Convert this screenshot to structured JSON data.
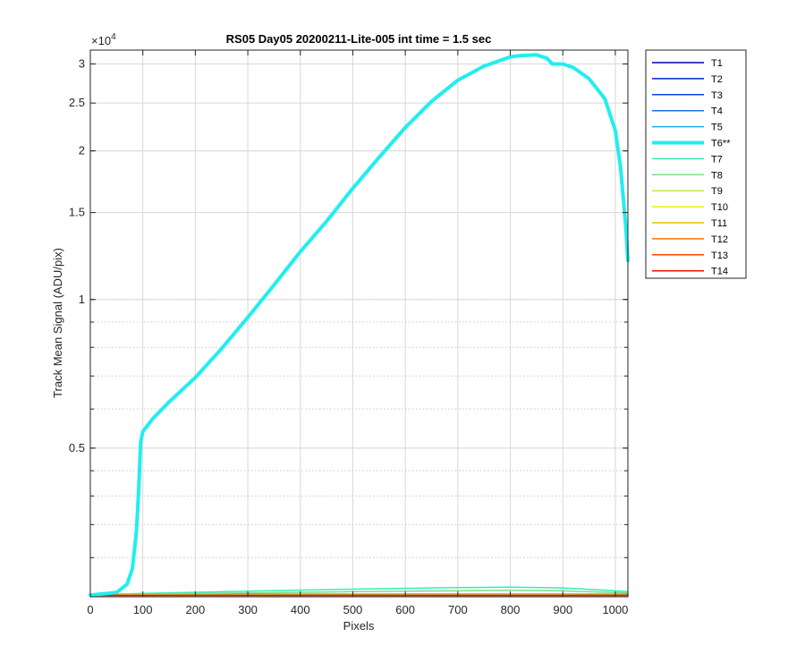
{
  "chart_data": {
    "type": "line",
    "title": "RS05 Day05 20200211-Lite-005 int time = 1.5 sec",
    "xlabel": "Pixels",
    "ylabel": "Track Mean Signal (ADU/pix)",
    "y_multiplier": "×10",
    "y_multiplier_exp": "4",
    "y_scale": "log",
    "xlim": [
      0,
      1024
    ],
    "ylim": [
      2500,
      32000
    ],
    "x_ticks": [
      0,
      100,
      200,
      300,
      400,
      500,
      600,
      700,
      800,
      900,
      1000
    ],
    "y_ticks": [
      {
        "value": 5000,
        "label": "0.5"
      },
      {
        "value": 10000,
        "label": "1"
      },
      {
        "value": 15000,
        "label": "1.5"
      },
      {
        "value": 20000,
        "label": "2"
      },
      {
        "value": 25000,
        "label": "2.5"
      },
      {
        "value": 30000,
        "label": "3"
      }
    ],
    "y_minor": [
      2500,
      3000,
      3500,
      4000,
      4500,
      5000,
      6000,
      7000,
      8000,
      9000,
      10000,
      20000,
      30000
    ],
    "grid": true,
    "legend_position": "outside-right",
    "series": [
      {
        "name": "T1",
        "color": "#0000AA",
        "width": 1.5,
        "x": [
          0,
          1024
        ],
        "y": [
          2520,
          2520
        ]
      },
      {
        "name": "T2",
        "color": "#0022CC",
        "width": 1.5,
        "x": [
          0,
          1024
        ],
        "y": [
          2522,
          2522
        ]
      },
      {
        "name": "T3",
        "color": "#0044EE",
        "width": 1.5,
        "x": [
          0,
          1024
        ],
        "y": [
          2524,
          2524
        ]
      },
      {
        "name": "T4",
        "color": "#1A74E0",
        "width": 1.5,
        "x": [
          0,
          1024
        ],
        "y": [
          2526,
          2526
        ]
      },
      {
        "name": "T5",
        "color": "#1FAAEE",
        "width": 1.5,
        "x": [
          0,
          1024
        ],
        "y": [
          2530,
          2530
        ]
      },
      {
        "name": "T6**",
        "color": "#22EEEE",
        "width": 4,
        "x": [
          0,
          50,
          70,
          80,
          88,
          92,
          96,
          100,
          120,
          150,
          200,
          250,
          300,
          350,
          400,
          450,
          500,
          550,
          600,
          650,
          700,
          750,
          800,
          820,
          850,
          870,
          880,
          900,
          920,
          950,
          980,
          1000,
          1010,
          1020,
          1024
        ],
        "y": [
          2520,
          2550,
          2650,
          2850,
          3400,
          4100,
          5150,
          5400,
          5750,
          6200,
          6950,
          7950,
          9200,
          10700,
          12500,
          14400,
          16800,
          19400,
          22300,
          25200,
          27800,
          29700,
          31000,
          31200,
          31300,
          30800,
          30000,
          30000,
          29500,
          28000,
          25500,
          22000,
          18500,
          14000,
          12000
        ]
      },
      {
        "name": "T7",
        "color": "#33EEBB",
        "width": 1.5,
        "x": [
          0,
          100,
          300,
          500,
          700,
          800,
          900,
          1000,
          1024
        ],
        "y": [
          2520,
          2540,
          2565,
          2590,
          2610,
          2615,
          2605,
          2570,
          2560
        ]
      },
      {
        "name": "T8",
        "color": "#77E088",
        "width": 1.5,
        "x": [
          0,
          100,
          300,
          500,
          700,
          800,
          900,
          1000,
          1024
        ],
        "y": [
          2518,
          2530,
          2545,
          2560,
          2570,
          2575,
          2570,
          2550,
          2545
        ]
      },
      {
        "name": "T9",
        "color": "#BBEE44",
        "width": 1.5,
        "x": [
          0,
          1024
        ],
        "y": [
          2522,
          2522
        ]
      },
      {
        "name": "T10",
        "color": "#EEEE00",
        "width": 1.5,
        "x": [
          0,
          1024
        ],
        "y": [
          2520,
          2520
        ]
      },
      {
        "name": "T11",
        "color": "#EEBB00",
        "width": 1.5,
        "x": [
          0,
          1024
        ],
        "y": [
          2519,
          2519
        ]
      },
      {
        "name": "T12",
        "color": "#FF7700",
        "width": 1.5,
        "x": [
          0,
          1024
        ],
        "y": [
          2518,
          2518
        ]
      },
      {
        "name": "T13",
        "color": "#FF4400",
        "width": 1.5,
        "x": [
          0,
          1024
        ],
        "y": [
          2517,
          2517
        ]
      },
      {
        "name": "T14",
        "color": "#EE1100",
        "width": 1.5,
        "x": [
          0,
          1024
        ],
        "y": [
          2516,
          2516
        ]
      }
    ]
  }
}
